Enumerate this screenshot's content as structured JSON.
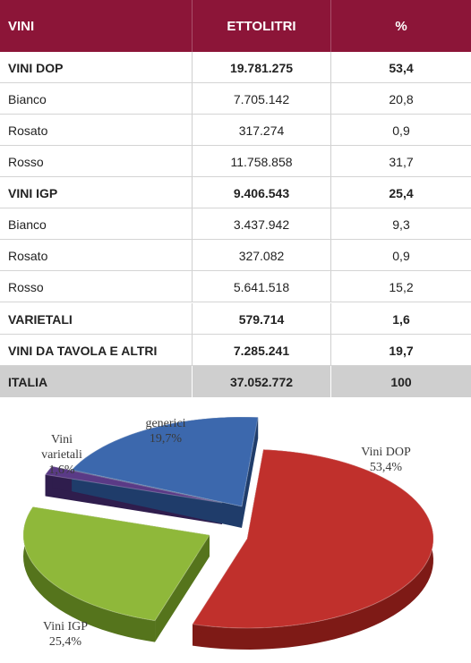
{
  "header": {
    "col1": "VINI",
    "col2": "ETTOLITRI",
    "col3": "%"
  },
  "rows": [
    {
      "name": "VINI DOP",
      "value": "19.781.275",
      "pct": "53,4",
      "bold": true
    },
    {
      "name": "Bianco",
      "value": "7.705.142",
      "pct": "20,8",
      "bold": false
    },
    {
      "name": "Rosato",
      "value": "317.274",
      "pct": "0,9",
      "bold": false
    },
    {
      "name": "Rosso",
      "value": "11.758.858",
      "pct": "31,7",
      "bold": false
    },
    {
      "name": "VINI IGP",
      "value": "9.406.543",
      "pct": "25,4",
      "bold": true
    },
    {
      "name": "Bianco",
      "value": "3.437.942",
      "pct": "9,3",
      "bold": false
    },
    {
      "name": "Rosato",
      "value": "327.082",
      "pct": "0,9",
      "bold": false
    },
    {
      "name": "Rosso",
      "value": "5.641.518",
      "pct": "15,2",
      "bold": false
    },
    {
      "name": "VARIETALI",
      "value": "579.714",
      "pct": "1,6",
      "bold": true
    },
    {
      "name": "VINI DA TAVOLA E ALTRI",
      "value": "7.285.241",
      "pct": "19,7",
      "bold": true
    }
  ],
  "total": {
    "name": "ITALIA",
    "value": "37.052.772",
    "pct": "100"
  },
  "colors": {
    "header_bg": "#8c1538",
    "total_bg": "#cfcfcf"
  },
  "chart_data": {
    "type": "pie",
    "slices": [
      {
        "label_lines": [
          "Vini DOP",
          "53,4%"
        ],
        "value": 53.4,
        "color": "#c0302c",
        "side": "#7e1a16"
      },
      {
        "label_lines": [
          "Vini IGP",
          "25,4%"
        ],
        "value": 25.4,
        "color": "#8fb83a",
        "side": "#55741c"
      },
      {
        "label_lines": [
          "Vini",
          "varietali",
          "1,6%"
        ],
        "value": 1.6,
        "color": "#5a3a86",
        "side": "#2f1d4d"
      },
      {
        "label_lines": [
          "generici",
          "19,7%"
        ],
        "value": 19.7,
        "color": "#3c68ad",
        "side": "#1f3c6a"
      }
    ]
  }
}
